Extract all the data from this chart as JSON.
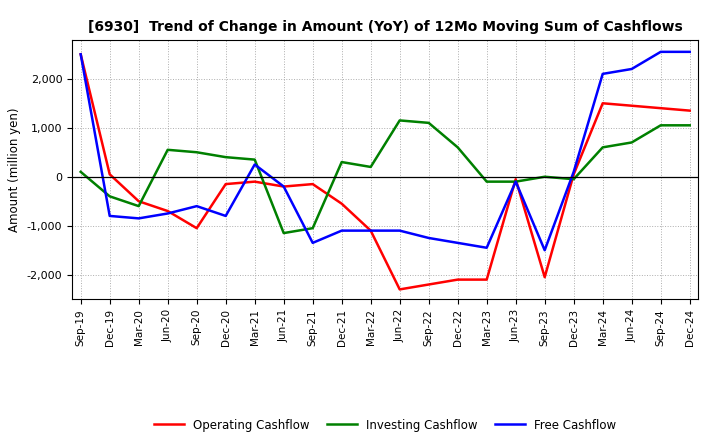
{
  "title": "[6930]  Trend of Change in Amount (YoY) of 12Mo Moving Sum of Cashflows",
  "ylabel": "Amount (million yen)",
  "x_labels": [
    "Sep-19",
    "Dec-19",
    "Mar-20",
    "Jun-20",
    "Sep-20",
    "Dec-20",
    "Mar-21",
    "Jun-21",
    "Sep-21",
    "Dec-21",
    "Mar-22",
    "Jun-22",
    "Sep-22",
    "Dec-22",
    "Mar-23",
    "Jun-23",
    "Sep-23",
    "Dec-23",
    "Mar-24",
    "Jun-24",
    "Sep-24",
    "Dec-24"
  ],
  "operating": [
    2500,
    50,
    -500,
    -700,
    -1050,
    -150,
    -100,
    -200,
    -150,
    -550,
    -1100,
    -2300,
    -2200,
    -2100,
    -2100,
    -50,
    -2050,
    50,
    1500,
    1450,
    1400,
    1350
  ],
  "investing": [
    100,
    -400,
    -600,
    550,
    500,
    400,
    350,
    -1150,
    -1050,
    300,
    200,
    1150,
    1100,
    600,
    -100,
    -100,
    0,
    -50,
    600,
    700,
    1050,
    1050
  ],
  "free": [
    2500,
    -800,
    -850,
    -750,
    -600,
    -800,
    250,
    -200,
    -1350,
    -1100,
    -1100,
    -1100,
    -1250,
    -1350,
    -1450,
    -100,
    -1500,
    100,
    2100,
    2200,
    2550,
    2550
  ],
  "ylim": [
    -2500,
    2800
  ],
  "yticks": [
    -2000,
    -1000,
    0,
    1000,
    2000
  ],
  "colors": {
    "operating": "#ff0000",
    "investing": "#008000",
    "free": "#0000ff"
  },
  "legend": [
    "Operating Cashflow",
    "Investing Cashflow",
    "Free Cashflow"
  ],
  "background": "#ffffff",
  "grid_color": "#999999"
}
